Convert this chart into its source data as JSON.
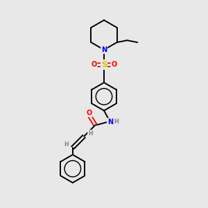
{
  "background_color": "#e8e8e8",
  "bond_color": "#000000",
  "N_color": "#0000ff",
  "O_color": "#ff0000",
  "S_color": "#cccc00",
  "H_color": "#808080",
  "figsize": [
    3.0,
    3.0
  ],
  "dpi": 100,
  "xlim": [
    0,
    10
  ],
  "ylim": [
    0,
    10
  ]
}
